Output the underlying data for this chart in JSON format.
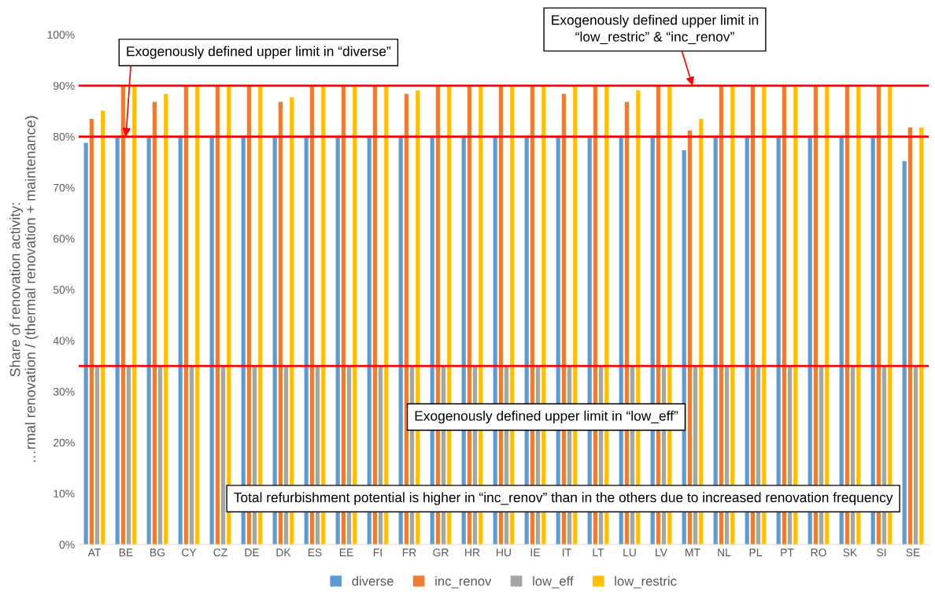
{
  "chart_data": {
    "type": "bar",
    "ylabel": "Share of renovation activity:\n…rmal renovation / (thermal renovation + maintenance)",
    "categories": [
      "AT",
      "BE",
      "BG",
      "CY",
      "CZ",
      "DE",
      "DK",
      "ES",
      "EE",
      "FI",
      "FR",
      "GR",
      "HR",
      "HU",
      "IE",
      "IT",
      "LT",
      "LU",
      "LV",
      "MT",
      "NL",
      "PL",
      "PT",
      "RO",
      "SK",
      "SI",
      "SE"
    ],
    "series": [
      {
        "name": "diverse",
        "color": "#5b9bd5",
        "values": [
          78.8,
          80,
          80,
          80,
          80,
          80,
          80,
          80,
          80,
          80,
          80,
          80,
          80,
          80,
          80,
          80,
          80,
          80,
          80,
          77.3,
          80,
          80,
          80,
          80,
          80,
          80,
          75.2
        ]
      },
      {
        "name": "inc_renov",
        "color": "#ed7d31",
        "values": [
          83.5,
          90,
          86.8,
          90,
          90,
          90,
          86.8,
          90,
          90,
          90,
          88.4,
          90,
          90,
          90,
          90,
          88.4,
          90,
          86.8,
          90,
          81.2,
          90,
          90,
          90,
          90,
          90,
          90,
          81.8
        ]
      },
      {
        "name": "low_eff",
        "color": "#a5a5a5",
        "values": [
          35,
          35,
          35,
          35,
          35,
          35,
          35,
          35,
          35,
          35,
          35,
          35,
          35,
          35,
          35,
          35,
          35,
          35,
          35,
          35,
          35,
          35,
          35,
          35,
          35,
          35,
          35
        ]
      },
      {
        "name": "low_restric",
        "color": "#ffc000",
        "values": [
          85.1,
          90,
          88.4,
          90,
          90,
          90,
          87.7,
          90,
          90,
          90,
          89.1,
          90,
          90,
          90,
          90,
          90,
          90,
          89.1,
          90,
          83.5,
          90,
          90,
          90,
          90,
          90,
          90,
          81.8
        ]
      }
    ],
    "ylim": [
      0,
      100
    ],
    "yticks": [
      {
        "value": 0,
        "label": "0%"
      },
      {
        "value": 10,
        "label": "10%"
      },
      {
        "value": 20,
        "label": "20%"
      },
      {
        "value": 30,
        "label": "30%"
      },
      {
        "value": 40,
        "label": "40%"
      },
      {
        "value": 50,
        "label": "50%"
      },
      {
        "value": 60,
        "label": "60%"
      },
      {
        "value": 70,
        "label": "70%"
      },
      {
        "value": 80,
        "label": "80%"
      },
      {
        "value": 90,
        "label": "90%"
      },
      {
        "value": 100,
        "label": "100%"
      }
    ],
    "ref_lines": [
      {
        "axis": "y",
        "value": 90,
        "color": "#ff0000"
      },
      {
        "axis": "y",
        "value": 80,
        "color": "#ff0000"
      },
      {
        "axis": "y",
        "value": 35,
        "color": "#ff0000"
      }
    ],
    "annotations": [
      {
        "text": "Exogenously defined upper limit in “diverse”",
        "x": "BE",
        "y": 80
      },
      {
        "text": "Exogenously defined upper limit in\n“low_restric” & “inc_renov”",
        "x": "MT",
        "y": 90
      },
      "Exogenously defined upper limit in “low_eff”",
      "Total refurbishment potential is higher in “inc_renov” than in the others due to increased renovation frequency"
    ],
    "grid": false,
    "legend": "bottom"
  }
}
